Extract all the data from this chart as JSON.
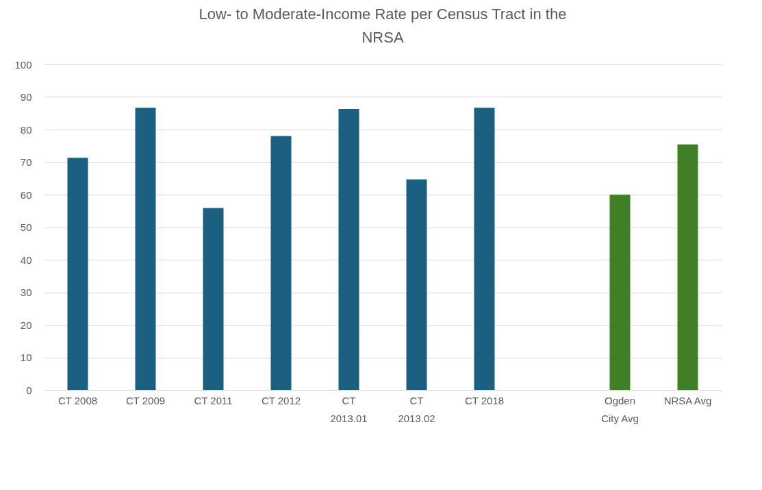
{
  "chart_data": {
    "type": "bar",
    "title": "Low- to Moderate-Income Rate per Census Tract in the NRSA",
    "categories": [
      "CT 2008",
      "CT 2009",
      "CT 2011",
      "CT 2012",
      "CT 2013.01",
      "CT 2013.02",
      "CT 2018",
      null,
      "Ogden City Avg",
      "NRSA Avg"
    ],
    "values": [
      71.3,
      86.7,
      55.9,
      78,
      86.3,
      64.7,
      86.7,
      null,
      60,
      75.4
    ],
    "colors": [
      "#1a5e80",
      "#1a5e80",
      "#1a5e80",
      "#1a5e80",
      "#1a5e80",
      "#1a5e80",
      "#1a5e80",
      "#1a5e80",
      "#3f7f26",
      "#3f7f26"
    ],
    "ylim": [
      0,
      100
    ],
    "yticks": [
      0,
      10,
      20,
      30,
      40,
      50,
      60,
      70,
      80,
      90,
      100
    ],
    "grid": "y"
  }
}
